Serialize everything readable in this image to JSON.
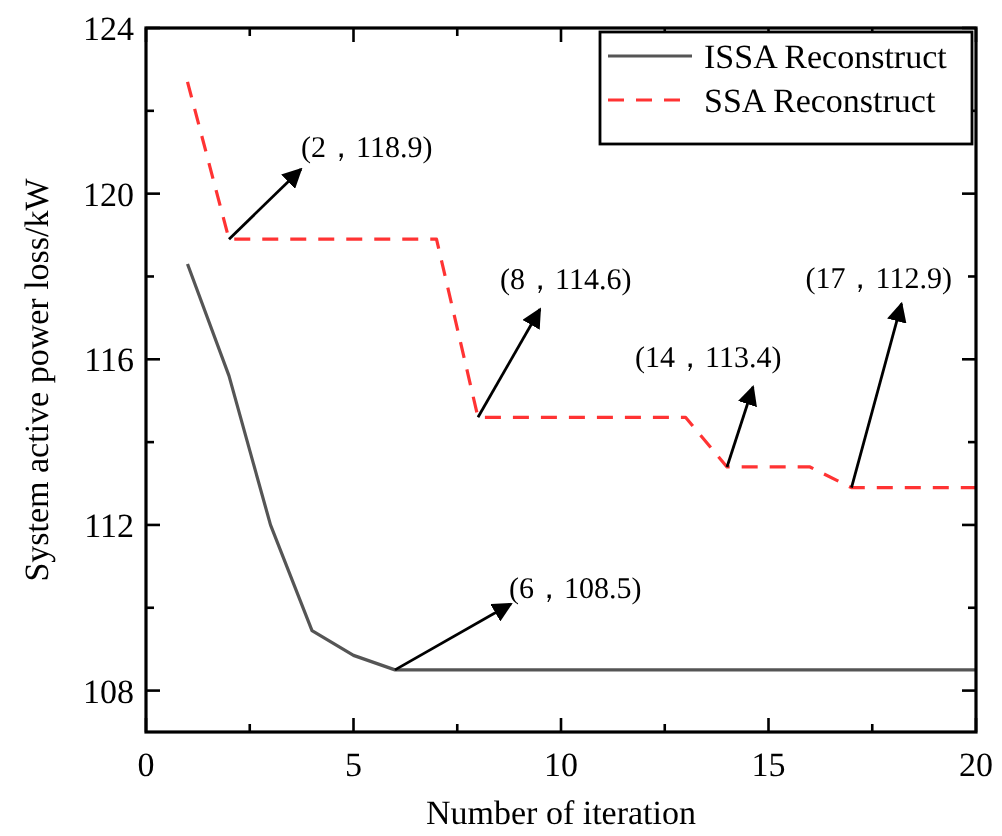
{
  "chart_data": {
    "type": "line",
    "xlabel": "Number of iteration",
    "ylabel": "System active power loss/kW",
    "xlim": [
      0,
      20
    ],
    "xticks": [
      0,
      {
        "value": 2.5,
        "label": null
      },
      5,
      {
        "value": 7.5,
        "label": null
      },
      10,
      {
        "value": 12.5,
        "label": null
      },
      15,
      {
        "value": 17.5,
        "label": null
      },
      20
    ],
    "ylim": [
      107,
      124
    ],
    "yticks": [
      108,
      {
        "value": 110,
        "label": null
      },
      112,
      {
        "value": 114,
        "label": null
      },
      116,
      {
        "value": 118,
        "label": null
      },
      120,
      {
        "value": 122,
        "label": null
      },
      124
    ],
    "legend": "top right",
    "series": [
      {
        "name": "ISSA Reconstruct",
        "color": "#555555",
        "line_style": "solid",
        "x": [
          1,
          2,
          3,
          4,
          5,
          6,
          20
        ],
        "values": [
          118.3,
          115.6,
          112.0,
          109.45,
          108.85,
          108.5,
          108.5
        ]
      },
      {
        "name": "SSA Reconstruct",
        "color": "#ff3333",
        "line_style": "dashed",
        "x": [
          1,
          2,
          7,
          8,
          13,
          14,
          16,
          17,
          20
        ],
        "values": [
          122.7,
          118.9,
          118.9,
          114.6,
          114.6,
          113.4,
          113.4,
          112.9,
          112.9
        ]
      }
    ],
    "annotations": [
      {
        "text": "(2，118.9)",
        "x": 2,
        "y": 118.9
      },
      {
        "text": "(8，114.6)",
        "x": 8,
        "y": 114.6
      },
      {
        "text": "(14，113.4)",
        "x": 14,
        "y": 113.4
      },
      {
        "text": "(17，112.9)",
        "x": 17,
        "y": 112.9
      },
      {
        "text": "(6，108.5)",
        "x": 6,
        "y": 108.5
      }
    ]
  }
}
